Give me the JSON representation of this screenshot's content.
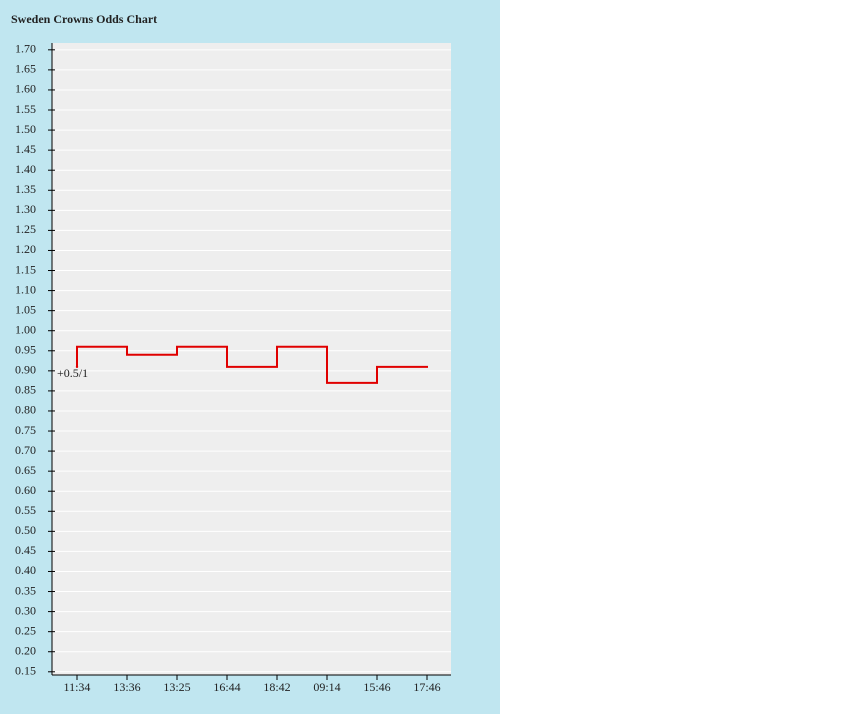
{
  "chart_data": {
    "type": "line",
    "step": "before",
    "title": "Sweden Crowns Odds Chart",
    "annotation": "+0.5/1",
    "categories": [
      "11:34",
      "13:36",
      "13:25",
      "16:44",
      "18:42",
      "09:14",
      "15:46",
      "17:46"
    ],
    "series": [
      {
        "color": "#e00000",
        "values": [
          0.91,
          0.96,
          0.94,
          0.96,
          0.91,
          0.96,
          0.87,
          0.91
        ]
      }
    ],
    "ylim": [
      0.142,
      1.717
    ],
    "yticks": [
      {
        "value": 1.7,
        "label": "1.70"
      },
      {
        "value": 1.65,
        "label": "1.65"
      },
      {
        "value": 1.6,
        "label": "1.60"
      },
      {
        "value": 1.55,
        "label": "1.55"
      },
      {
        "value": 1.5,
        "label": "1.50"
      },
      {
        "value": 1.45,
        "label": "1.45"
      },
      {
        "value": 1.4,
        "label": "1.40"
      },
      {
        "value": 1.35,
        "label": "1.35"
      },
      {
        "value": 1.3,
        "label": "1.30"
      },
      {
        "value": 1.25,
        "label": "1.25"
      },
      {
        "value": 1.2,
        "label": "1.20"
      },
      {
        "value": 1.15,
        "label": "1.15"
      },
      {
        "value": 1.1,
        "label": "1.10"
      },
      {
        "value": 1.05,
        "label": "1.05"
      },
      {
        "value": 1.0,
        "label": "1.00"
      },
      {
        "value": 0.95,
        "label": "0.95"
      },
      {
        "value": 0.9,
        "label": "0.90"
      },
      {
        "value": 0.85,
        "label": "0.85"
      },
      {
        "value": 0.8,
        "label": "0.80"
      },
      {
        "value": 0.75,
        "label": "0.75"
      },
      {
        "value": 0.7,
        "label": "0.70"
      },
      {
        "value": 0.65,
        "label": "0.65"
      },
      {
        "value": 0.6,
        "label": "0.60"
      },
      {
        "value": 0.55,
        "label": "0.55"
      },
      {
        "value": 0.5,
        "label": "0.50"
      },
      {
        "value": 0.45,
        "label": "0.45"
      },
      {
        "value": 0.4,
        "label": "0.40"
      },
      {
        "value": 0.35,
        "label": "0.35"
      },
      {
        "value": 0.3,
        "label": "0.30"
      },
      {
        "value": 0.25,
        "label": "0.25"
      },
      {
        "value": 0.2,
        "label": "0.20"
      },
      {
        "value": 0.15,
        "label": "0.15"
      }
    ],
    "grid": true
  }
}
